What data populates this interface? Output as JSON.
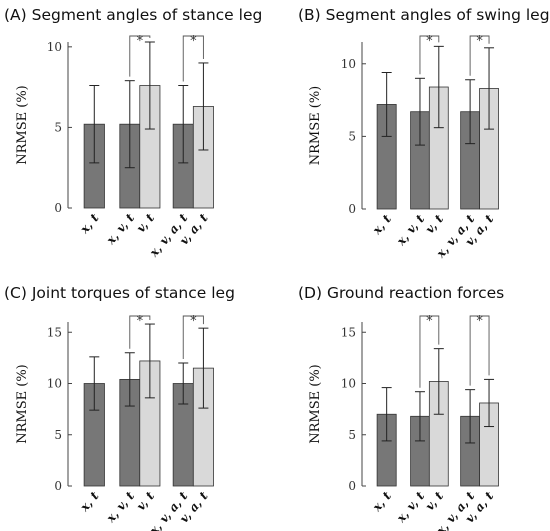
{
  "chart_data": [
    {
      "type": "bar",
      "title": "(A) Segment angles of stance leg",
      "ylabel": "NRMSE (%)",
      "ylim": [
        0,
        10.3
      ],
      "yticks": [
        0,
        5,
        10
      ],
      "categories": [
        "x, t",
        "x, v, t",
        "v, t",
        "x, v, a, t",
        "v, a, t"
      ],
      "values": [
        5.2,
        5.2,
        7.6,
        5.2,
        6.3
      ],
      "errors": [
        2.4,
        2.7,
        2.7,
        2.4,
        2.7
      ],
      "colors": [
        "#777777",
        "#777777",
        "#d9d9d9",
        "#777777",
        "#d9d9d9"
      ],
      "significance": [
        {
          "bars": [
            1,
            2
          ],
          "label": "*"
        },
        {
          "bars": [
            3,
            4
          ],
          "label": "*"
        }
      ]
    },
    {
      "type": "bar",
      "title": "(B) Segment angles of swing leg",
      "ylabel": "NRMSE (%)",
      "ylim": [
        0,
        11.5
      ],
      "yticks": [
        0,
        5,
        10
      ],
      "categories": [
        "x, t",
        "x, v, t",
        "v, t",
        "x, v, a, t",
        "v, a, t"
      ],
      "values": [
        7.2,
        6.7,
        8.4,
        6.7,
        8.3
      ],
      "errors": [
        2.2,
        2.3,
        2.8,
        2.2,
        2.8
      ],
      "colors": [
        "#777777",
        "#777777",
        "#d9d9d9",
        "#777777",
        "#d9d9d9"
      ],
      "significance": [
        {
          "bars": [
            1,
            2
          ],
          "label": "*"
        },
        {
          "bars": [
            3,
            4
          ],
          "label": "*"
        }
      ]
    },
    {
      "type": "bar",
      "title": "(C) Joint torques of stance leg",
      "ylabel": "NRMSE (%)",
      "ylim": [
        0,
        16
      ],
      "yticks": [
        0,
        5,
        10,
        15
      ],
      "categories": [
        "x, t",
        "x, v, t",
        "v, t",
        "x, v, a, t",
        "v, a, t"
      ],
      "values": [
        10.0,
        10.4,
        12.2,
        10.0,
        11.5
      ],
      "errors": [
        2.6,
        2.6,
        3.6,
        2.0,
        3.9
      ],
      "colors": [
        "#777777",
        "#777777",
        "#d9d9d9",
        "#777777",
        "#d9d9d9"
      ],
      "significance": [
        {
          "bars": [
            1,
            2
          ],
          "label": "*"
        },
        {
          "bars": [
            3,
            4
          ],
          "label": "*"
        }
      ]
    },
    {
      "type": "bar",
      "title": "(D) Ground reaction forces",
      "ylabel": "NRMSE (%)",
      "ylim": [
        0,
        16
      ],
      "yticks": [
        0,
        5,
        10,
        15
      ],
      "categories": [
        "x, t",
        "x, v, t",
        "v, t",
        "x, v, a, t",
        "v, a, t"
      ],
      "values": [
        7.0,
        6.8,
        10.2,
        6.8,
        8.1
      ],
      "errors": [
        2.6,
        2.4,
        3.2,
        2.6,
        2.3
      ],
      "colors": [
        "#777777",
        "#777777",
        "#d9d9d9",
        "#777777",
        "#d9d9d9"
      ],
      "significance": [
        {
          "bars": [
            1,
            2
          ],
          "label": "*"
        },
        {
          "bars": [
            3,
            4
          ],
          "label": "*"
        }
      ]
    }
  ]
}
